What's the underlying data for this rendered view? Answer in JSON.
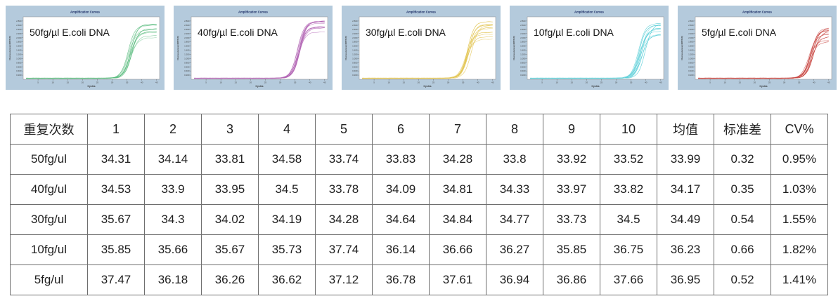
{
  "page": {
    "kind": "qPCR sensitivity report"
  },
  "chart_common": {
    "title": "Amplification Curves",
    "xlabel": "Cycles",
    "ylabel": "Fluorescence (465-510)",
    "x_ticks": [
      5,
      10,
      15,
      20,
      25,
      30,
      35,
      40,
      45
    ],
    "y_ticks": [
      0.2,
      0.4,
      0.6,
      0.8,
      1.0,
      1.2,
      1.4,
      1.6,
      1.8,
      2.0,
      2.2,
      2.4,
      2.6,
      2.8
    ],
    "xlim": [
      1,
      45
    ],
    "ylim": [
      0,
      3
    ],
    "grid": false,
    "legend": "none",
    "panel_bg": "#b4cadc",
    "plot_bg": "#ffffff",
    "title_color": "#1d2f66"
  },
  "chart_data": [
    {
      "type": "line",
      "id": "50fg",
      "label": "50fg/µl E.coli DNA",
      "color": "#57bb7c",
      "title": "Amplification Curves",
      "xlabel": "Cycles",
      "ylabel": "Fluorescence (465-510)",
      "replicate_ct_values": [
        34.31,
        34.14,
        33.81,
        34.58,
        33.74,
        33.83,
        34.28,
        33.8,
        33.92,
        33.52
      ],
      "baseline": 0.05,
      "plateau_range": [
        1.95,
        2.75
      ]
    },
    {
      "type": "line",
      "id": "40fg",
      "label": "40fg/µl E.coli DNA",
      "color": "#b264b4",
      "title": "Amplification Curves",
      "xlabel": "Cycles",
      "ylabel": "Fluorescence (465-510)",
      "replicate_ct_values": [
        34.53,
        33.9,
        33.95,
        34.5,
        33.78,
        34.09,
        34.81,
        34.33,
        33.97,
        33.82
      ],
      "baseline": 0.05,
      "plateau_range": [
        2.0,
        2.85
      ]
    },
    {
      "type": "line",
      "id": "30fg",
      "label": "30fg/µl E.coli DNA",
      "color": "#e2c44f",
      "title": "Amplification Curves",
      "xlabel": "Cycles",
      "ylabel": "Fluorescence (465-510)",
      "replicate_ct_values": [
        35.67,
        34.3,
        34.02,
        34.19,
        34.28,
        34.64,
        34.84,
        34.77,
        33.73,
        34.5
      ],
      "baseline": 0.05,
      "plateau_range": [
        1.75,
        2.85
      ]
    },
    {
      "type": "line",
      "id": "10fg",
      "label": "10fg/µl E.coli DNA",
      "color": "#5ccfd8",
      "title": "Amplification Curves",
      "xlabel": "Cycles",
      "ylabel": "Fluorescence (465-510)",
      "replicate_ct_values": [
        35.85,
        35.66,
        35.67,
        35.73,
        37.74,
        36.14,
        36.66,
        36.27,
        35.85,
        36.75
      ],
      "baseline": 0.05,
      "plateau_range": [
        1.85,
        2.7
      ]
    },
    {
      "type": "line",
      "id": "5fg",
      "label": "5fg/µl E.coli DNA",
      "color": "#c84540",
      "title": "Amplification Curves",
      "xlabel": "Cycles",
      "ylabel": "Fluorescence (465-510)",
      "replicate_ct_values": [
        37.47,
        36.18,
        36.26,
        36.62,
        37.12,
        36.78,
        37.61,
        36.94,
        36.86,
        37.66
      ],
      "baseline": 0.05,
      "plateau_range": [
        1.6,
        2.45
      ]
    }
  ],
  "table": {
    "header": [
      "重复次数",
      "1",
      "2",
      "3",
      "4",
      "5",
      "6",
      "7",
      "8",
      "9",
      "10",
      "均值",
      "标准差",
      "CV%"
    ],
    "rows": [
      {
        "label": "50fg/ul",
        "values": [
          "34.31",
          "34.14",
          "33.81",
          "34.58",
          "33.74",
          "33.83",
          "34.28",
          "33.8",
          "33.92",
          "33.52",
          "33.99",
          "0.32",
          "0.95%"
        ]
      },
      {
        "label": "40fg/ul",
        "values": [
          "34.53",
          "33.9",
          "33.95",
          "34.5",
          "33.78",
          "34.09",
          "34.81",
          "34.33",
          "33.97",
          "33.82",
          "34.17",
          "0.35",
          "1.03%"
        ]
      },
      {
        "label": "30fg/ul",
        "values": [
          "35.67",
          "34.3",
          "34.02",
          "34.19",
          "34.28",
          "34.64",
          "34.84",
          "34.77",
          "33.73",
          "34.5",
          "34.49",
          "0.54",
          "1.55%"
        ]
      },
      {
        "label": "10fg/ul",
        "values": [
          "35.85",
          "35.66",
          "35.67",
          "35.73",
          "37.74",
          "36.14",
          "36.66",
          "36.27",
          "35.85",
          "36.75",
          "36.23",
          "0.66",
          "1.82%"
        ]
      },
      {
        "label": "5fg/ul",
        "values": [
          "37.47",
          "36.18",
          "36.26",
          "36.62",
          "37.12",
          "36.78",
          "37.61",
          "36.94",
          "36.86",
          "37.66",
          "36.95",
          "0.52",
          "1.41%"
        ]
      }
    ]
  }
}
